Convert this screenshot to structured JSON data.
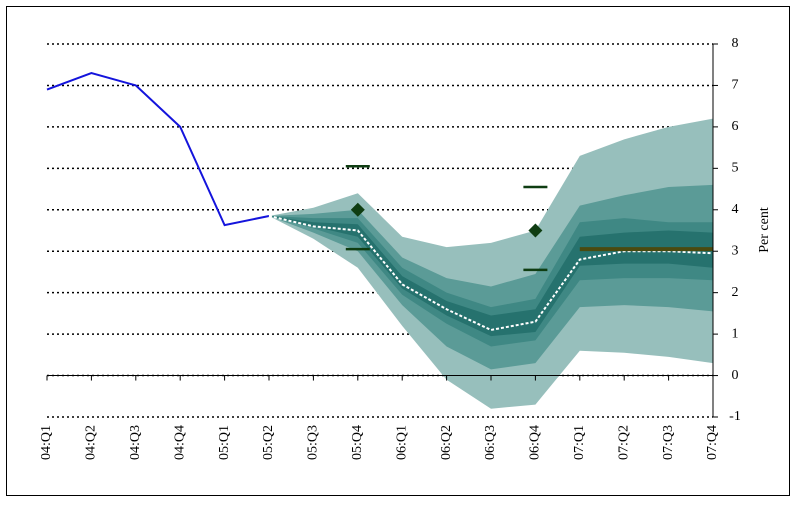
{
  "chart_data": {
    "type": "fan",
    "categories": [
      "04:Q1",
      "04:Q2",
      "04:Q3",
      "04:Q4",
      "05:Q1",
      "05:Q2",
      "05:Q3",
      "05:Q4",
      "06:Q1",
      "06:Q2",
      "06:Q3",
      "06:Q4",
      "07:Q1",
      "07:Q2",
      "07:Q3",
      "07:Q4"
    ],
    "y_label": "Per cent",
    "ylim": [
      -1,
      8
    ],
    "yticks": [
      -1,
      0,
      1,
      2,
      3,
      4,
      5,
      6,
      7,
      8
    ],
    "grid": true,
    "bands": [
      {
        "color": "#97bfbc",
        "lower": [
          null,
          null,
          null,
          null,
          null,
          3.85,
          3.3,
          2.6,
          1.2,
          -0.1,
          -0.8,
          -0.7,
          0.6,
          0.55,
          0.45,
          0.3
        ],
        "upper": [
          null,
          null,
          null,
          null,
          null,
          3.85,
          4.05,
          4.4,
          3.35,
          3.1,
          3.2,
          3.5,
          5.3,
          5.7,
          6.0,
          6.2
        ]
      },
      {
        "color": "#5b9b97",
        "lower": [
          null,
          null,
          null,
          null,
          null,
          3.85,
          3.45,
          3.0,
          1.7,
          0.7,
          0.15,
          0.3,
          1.65,
          1.7,
          1.65,
          1.55
        ],
        "upper": [
          null,
          null,
          null,
          null,
          null,
          3.85,
          3.9,
          4.0,
          2.85,
          2.35,
          2.15,
          2.45,
          4.1,
          4.35,
          4.55,
          4.6
        ]
      },
      {
        "color": "#3f8884",
        "lower": [
          null,
          null,
          null,
          null,
          null,
          3.85,
          3.55,
          3.2,
          1.95,
          1.25,
          0.7,
          0.85,
          2.3,
          2.35,
          2.35,
          2.3
        ],
        "upper": [
          null,
          null,
          null,
          null,
          null,
          3.85,
          3.8,
          3.8,
          2.6,
          2.0,
          1.65,
          1.85,
          3.7,
          3.8,
          3.7,
          3.7
        ]
      },
      {
        "color": "#26726e",
        "lower": [
          null,
          null,
          null,
          null,
          null,
          3.85,
          3.6,
          3.35,
          2.1,
          1.45,
          0.95,
          1.05,
          2.65,
          2.7,
          2.7,
          2.6
        ],
        "upper": [
          null,
          null,
          null,
          null,
          null,
          3.85,
          3.7,
          3.65,
          2.4,
          1.8,
          1.45,
          1.6,
          3.35,
          3.45,
          3.5,
          3.45
        ]
      }
    ],
    "series": [
      {
        "color": "#1414dc",
        "values": [
          6.9,
          7.3,
          7.0,
          6.0,
          3.63,
          3.85,
          null,
          null,
          null,
          null,
          null,
          null,
          null,
          null,
          null,
          null
        ]
      },
      {
        "color": "#ffffff",
        "dashed": true,
        "values": [
          null,
          null,
          null,
          null,
          null,
          3.85,
          3.6,
          3.5,
          2.2,
          1.6,
          1.1,
          1.3,
          2.8,
          3.0,
          3.0,
          2.95
        ]
      },
      {
        "color": "#4a4a10",
        "values": [
          null,
          null,
          null,
          null,
          null,
          null,
          null,
          null,
          null,
          null,
          null,
          null,
          3.05,
          3.05,
          3.05,
          3.05
        ]
      }
    ],
    "points": {
      "color": "#0f3d12",
      "values": [
        null,
        null,
        null,
        null,
        null,
        null,
        null,
        4.0,
        null,
        null,
        null,
        3.5,
        null,
        null,
        null,
        null
      ],
      "high": [
        null,
        null,
        null,
        null,
        null,
        null,
        null,
        5.05,
        null,
        null,
        null,
        4.55,
        null,
        null,
        null,
        null
      ],
      "low": [
        null,
        null,
        null,
        null,
        null,
        null,
        null,
        3.05,
        null,
        null,
        null,
        2.55,
        null,
        null,
        null,
        null
      ]
    }
  }
}
